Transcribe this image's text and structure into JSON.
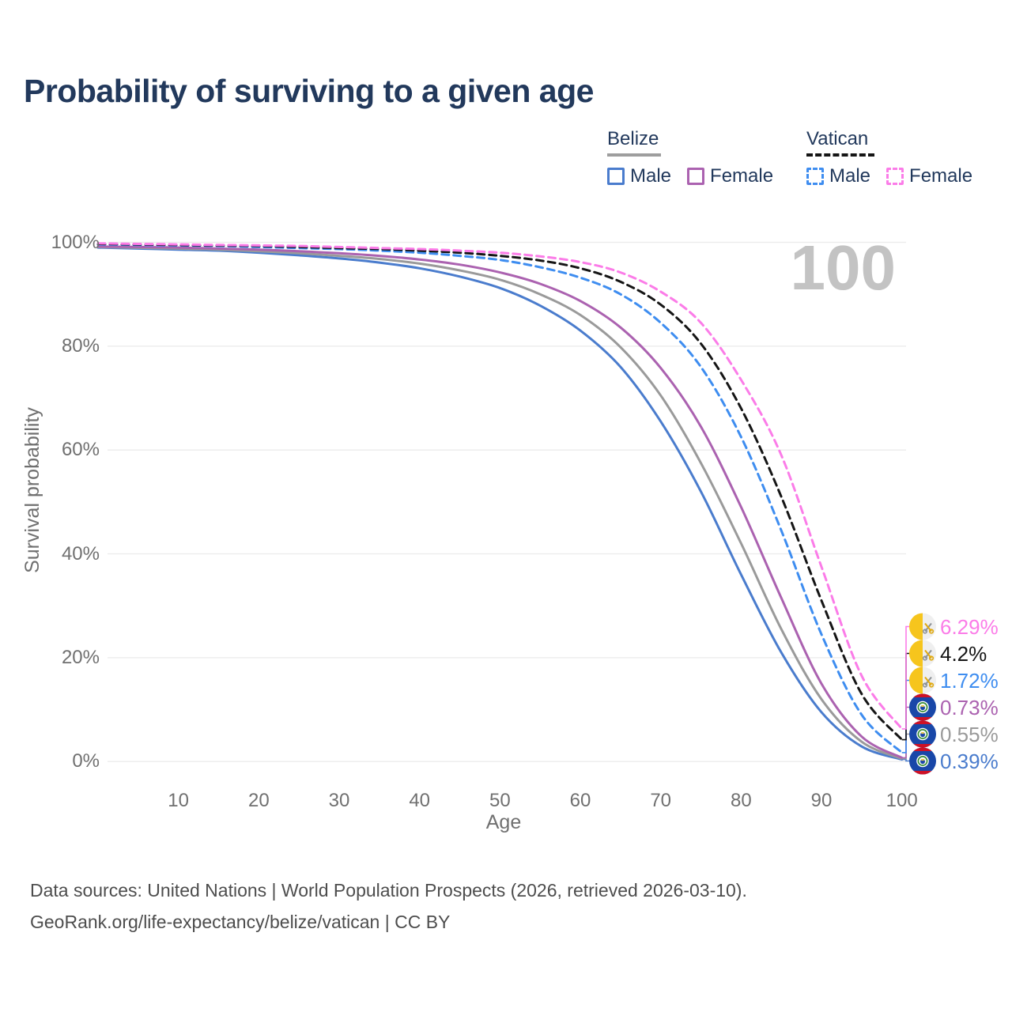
{
  "title": "Probability of surviving to a given age",
  "legend": {
    "groups": [
      {
        "name": "Belize",
        "style": "solid",
        "underline_color": "#9e9e9e",
        "items": [
          {
            "label": "Male",
            "color": "#4a7ccd",
            "dashed": false
          },
          {
            "label": "Female",
            "color": "#ab62b0",
            "dashed": false
          }
        ]
      },
      {
        "name": "Vatican",
        "style": "dashed",
        "underline_color": "#151515",
        "items": [
          {
            "label": "Male",
            "color": "#3e8df0",
            "dashed": true
          },
          {
            "label": "Female",
            "color": "#fb7ce8",
            "dashed": true
          }
        ]
      }
    ]
  },
  "chart_data": {
    "type": "line",
    "title": "Probability of surviving to a given age",
    "xlabel": "Age",
    "ylabel": "Survival probability",
    "xlim": [
      0,
      100
    ],
    "ylim": [
      0,
      100
    ],
    "grid": "horizontal",
    "gridline_color": "#ebebeb",
    "x_ticks": [
      10,
      20,
      30,
      40,
      50,
      60,
      70,
      80,
      90,
      100
    ],
    "y_ticks": [
      0,
      20,
      40,
      60,
      80,
      100
    ],
    "y_tick_labels": [
      "0%",
      "20%",
      "40%",
      "60%",
      "80%",
      "100%"
    ],
    "hover_age_annotation": "100",
    "x": [
      0,
      5,
      10,
      15,
      20,
      25,
      30,
      35,
      40,
      45,
      50,
      55,
      60,
      65,
      70,
      75,
      80,
      85,
      90,
      95,
      100
    ],
    "series": [
      {
        "name": "Belize Male",
        "country": "Belize",
        "sex": "Male",
        "color": "#4a7ccd",
        "dashed": false,
        "end_label": "0.39%",
        "end_value": 0.39,
        "values": [
          99.0,
          98.8,
          98.6,
          98.4,
          98.0,
          97.5,
          96.9,
          96.1,
          95.0,
          93.4,
          91.2,
          87.8,
          83.0,
          76.0,
          65.5,
          52.0,
          36.0,
          21.0,
          9.5,
          2.9,
          0.39
        ]
      },
      {
        "name": "Belize Both sexes",
        "country": "Belize",
        "sex": "Both",
        "color": "#9a9a9a",
        "dashed": false,
        "end_label": "0.55%",
        "end_value": 0.55,
        "values": [
          99.1,
          98.95,
          98.8,
          98.6,
          98.3,
          97.9,
          97.4,
          96.8,
          95.9,
          94.6,
          92.8,
          90.0,
          86.0,
          79.8,
          70.5,
          57.5,
          42.0,
          25.5,
          12.0,
          3.8,
          0.55
        ]
      },
      {
        "name": "Belize Female",
        "country": "Belize",
        "sex": "Female",
        "color": "#ab62b0",
        "dashed": false,
        "end_label": "0.73%",
        "end_value": 0.73,
        "values": [
          99.2,
          99.1,
          99.0,
          98.8,
          98.6,
          98.3,
          97.9,
          97.4,
          96.7,
          95.7,
          94.2,
          92.0,
          88.7,
          83.6,
          75.8,
          64.5,
          49.0,
          31.5,
          15.0,
          4.8,
          0.73
        ]
      },
      {
        "name": "Vatican Male",
        "country": "Vatican",
        "sex": "Male",
        "color": "#3e8df0",
        "dashed": true,
        "end_label": "1.72%",
        "end_value": 1.72,
        "values": [
          99.6,
          99.5,
          99.4,
          99.3,
          99.1,
          98.9,
          98.7,
          98.4,
          98.0,
          97.4,
          96.6,
          95.2,
          93.2,
          90.0,
          84.5,
          76.0,
          62.5,
          44.5,
          24.5,
          9.0,
          1.72
        ]
      },
      {
        "name": "Vatican Both sexes",
        "country": "Vatican",
        "sex": "Both",
        "color": "#151515",
        "dashed": true,
        "end_label": "4.2%",
        "end_value": 4.2,
        "values": [
          99.7,
          99.6,
          99.5,
          99.4,
          99.3,
          99.1,
          98.9,
          98.7,
          98.4,
          98.0,
          97.4,
          96.5,
          95.0,
          92.4,
          88.0,
          80.5,
          68.0,
          51.0,
          31.0,
          13.0,
          4.2
        ]
      },
      {
        "name": "Vatican Female",
        "country": "Vatican",
        "sex": "Female",
        "color": "#fb7ce8",
        "dashed": true,
        "end_label": "6.29%",
        "end_value": 6.29,
        "values": [
          99.8,
          99.7,
          99.6,
          99.5,
          99.4,
          99.3,
          99.1,
          98.9,
          98.7,
          98.4,
          98.0,
          97.3,
          96.2,
          94.2,
          90.5,
          84.5,
          73.5,
          59.0,
          37.5,
          16.5,
          6.29
        ]
      }
    ],
    "flag_colors": {
      "vatican_yellow": "#f6c51d",
      "vatican_white": "#efefef",
      "vatican_key_gray": "#8d9297",
      "vatican_key_yellow": "#e0a90f",
      "belize_blue": "#1947a8",
      "belize_red": "#ce1126",
      "belize_green": "#3a8e3a",
      "belize_yellow": "#e8c547"
    }
  },
  "footer": {
    "line1": "Data sources: United Nations | World Population Prospects (2026, retrieved 2026-03-10).",
    "line2": "GeoRank.org/life-expectancy/belize/vatican | CC BY"
  }
}
